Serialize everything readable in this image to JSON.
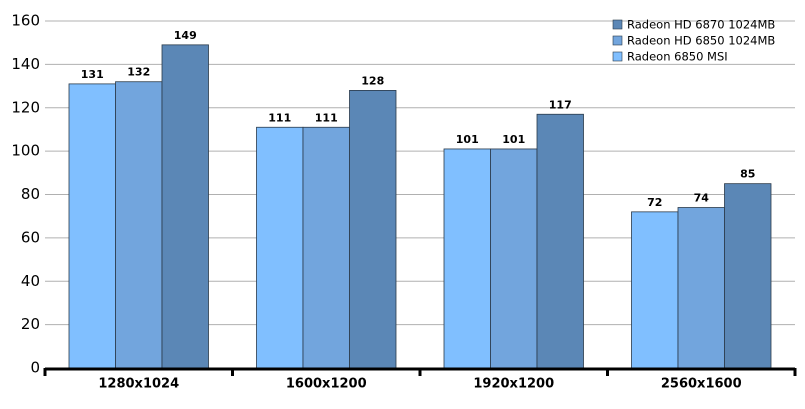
{
  "chart_data": {
    "type": "bar",
    "categories": [
      "1280x1024",
      "1600x1200",
      "1920x1200",
      "2560x1600"
    ],
    "series": [
      {
        "name": "Radeon HD 6870 1024MB",
        "color": "#5b87b6",
        "values": [
          149,
          128,
          117,
          85
        ]
      },
      {
        "name": "Radeon HD 6850 1024MB",
        "color": "#72a5dd",
        "values": [
          132,
          111,
          101,
          74
        ]
      },
      {
        "name": "Radeon 6850 MSI",
        "color": "#80bfff",
        "values": [
          131,
          111,
          101,
          72
        ]
      }
    ],
    "ylim": [
      0,
      160
    ],
    "yticks": [
      0,
      20,
      40,
      60,
      80,
      100,
      120,
      140,
      160
    ],
    "grid": true,
    "legend": "top-right"
  }
}
